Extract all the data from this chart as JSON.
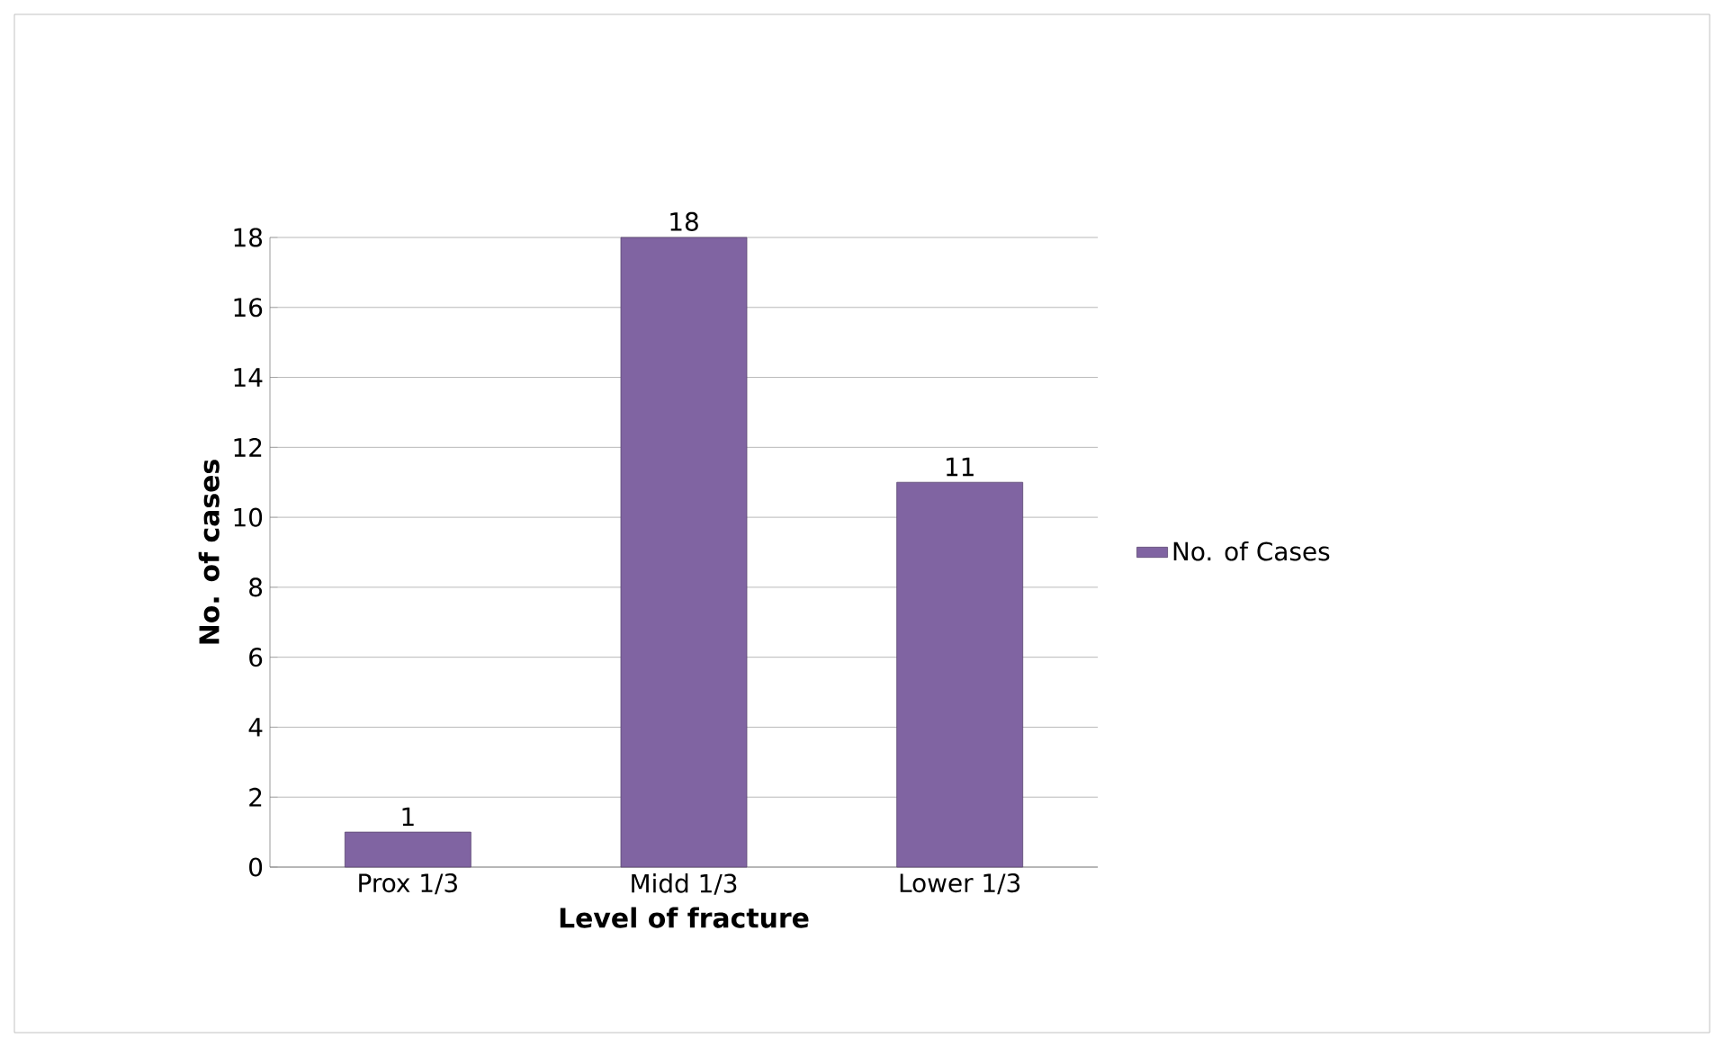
{
  "chart_data": {
    "type": "bar",
    "xlabel": "Level of fracture",
    "ylabel": "No. of cases",
    "categories": [
      "Prox 1/3",
      "Midd 1/3",
      "Lower 1/3"
    ],
    "series": [
      {
        "name": "No. of Cases",
        "color": "#8064a2",
        "values": [
          1,
          18,
          11
        ]
      }
    ],
    "ylim": [
      0,
      18
    ],
    "yticks": [
      0,
      2,
      4,
      6,
      8,
      10,
      12,
      14,
      16,
      18
    ],
    "grid": "y",
    "legend": "right",
    "data_labels": true
  }
}
